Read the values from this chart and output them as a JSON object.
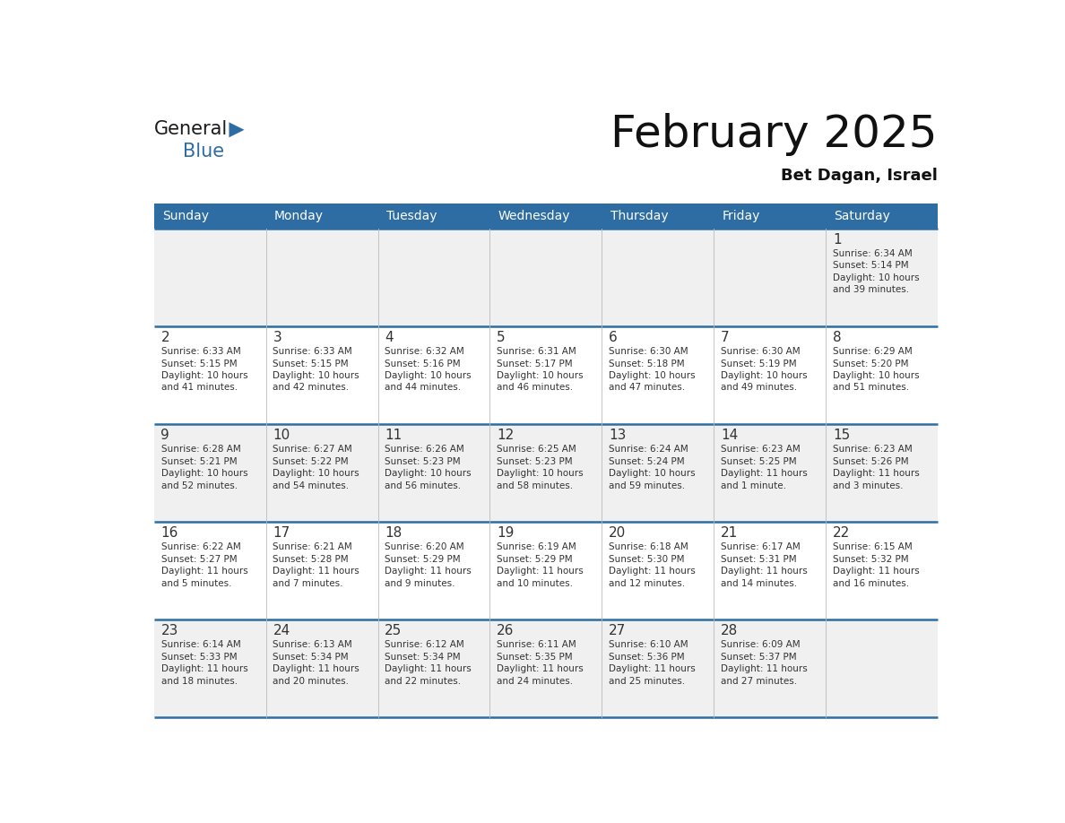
{
  "title": "February 2025",
  "subtitle": "Bet Dagan, Israel",
  "header_color": "#2e6da4",
  "header_text_color": "#ffffff",
  "days_of_week": [
    "Sunday",
    "Monday",
    "Tuesday",
    "Wednesday",
    "Thursday",
    "Friday",
    "Saturday"
  ],
  "background_color": "#ffffff",
  "cell_bg_white": "#ffffff",
  "cell_bg_gray": "#f0f0f0",
  "separator_color": "#2e6da4",
  "day_num_color": "#333333",
  "text_color": "#333333",
  "logo_general_color": "#1a1a1a",
  "logo_blue_color": "#2e6da4",
  "weeks": [
    [
      null,
      null,
      null,
      null,
      null,
      null,
      {
        "day": "1",
        "sunrise": "6:34 AM",
        "sunset": "5:14 PM",
        "daylight_line1": "10 hours",
        "daylight_line2": "and 39 minutes."
      }
    ],
    [
      {
        "day": "2",
        "sunrise": "6:33 AM",
        "sunset": "5:15 PM",
        "daylight_line1": "10 hours",
        "daylight_line2": "and 41 minutes."
      },
      {
        "day": "3",
        "sunrise": "6:33 AM",
        "sunset": "5:15 PM",
        "daylight_line1": "10 hours",
        "daylight_line2": "and 42 minutes."
      },
      {
        "day": "4",
        "sunrise": "6:32 AM",
        "sunset": "5:16 PM",
        "daylight_line1": "10 hours",
        "daylight_line2": "and 44 minutes."
      },
      {
        "day": "5",
        "sunrise": "6:31 AM",
        "sunset": "5:17 PM",
        "daylight_line1": "10 hours",
        "daylight_line2": "and 46 minutes."
      },
      {
        "day": "6",
        "sunrise": "6:30 AM",
        "sunset": "5:18 PM",
        "daylight_line1": "10 hours",
        "daylight_line2": "and 47 minutes."
      },
      {
        "day": "7",
        "sunrise": "6:30 AM",
        "sunset": "5:19 PM",
        "daylight_line1": "10 hours",
        "daylight_line2": "and 49 minutes."
      },
      {
        "day": "8",
        "sunrise": "6:29 AM",
        "sunset": "5:20 PM",
        "daylight_line1": "10 hours",
        "daylight_line2": "and 51 minutes."
      }
    ],
    [
      {
        "day": "9",
        "sunrise": "6:28 AM",
        "sunset": "5:21 PM",
        "daylight_line1": "10 hours",
        "daylight_line2": "and 52 minutes."
      },
      {
        "day": "10",
        "sunrise": "6:27 AM",
        "sunset": "5:22 PM",
        "daylight_line1": "10 hours",
        "daylight_line2": "and 54 minutes."
      },
      {
        "day": "11",
        "sunrise": "6:26 AM",
        "sunset": "5:23 PM",
        "daylight_line1": "10 hours",
        "daylight_line2": "and 56 minutes."
      },
      {
        "day": "12",
        "sunrise": "6:25 AM",
        "sunset": "5:23 PM",
        "daylight_line1": "10 hours",
        "daylight_line2": "and 58 minutes."
      },
      {
        "day": "13",
        "sunrise": "6:24 AM",
        "sunset": "5:24 PM",
        "daylight_line1": "10 hours",
        "daylight_line2": "and 59 minutes."
      },
      {
        "day": "14",
        "sunrise": "6:23 AM",
        "sunset": "5:25 PM",
        "daylight_line1": "11 hours",
        "daylight_line2": "and 1 minute."
      },
      {
        "day": "15",
        "sunrise": "6:23 AM",
        "sunset": "5:26 PM",
        "daylight_line1": "11 hours",
        "daylight_line2": "and 3 minutes."
      }
    ],
    [
      {
        "day": "16",
        "sunrise": "6:22 AM",
        "sunset": "5:27 PM",
        "daylight_line1": "11 hours",
        "daylight_line2": "and 5 minutes."
      },
      {
        "day": "17",
        "sunrise": "6:21 AM",
        "sunset": "5:28 PM",
        "daylight_line1": "11 hours",
        "daylight_line2": "and 7 minutes."
      },
      {
        "day": "18",
        "sunrise": "6:20 AM",
        "sunset": "5:29 PM",
        "daylight_line1": "11 hours",
        "daylight_line2": "and 9 minutes."
      },
      {
        "day": "19",
        "sunrise": "6:19 AM",
        "sunset": "5:29 PM",
        "daylight_line1": "11 hours",
        "daylight_line2": "and 10 minutes."
      },
      {
        "day": "20",
        "sunrise": "6:18 AM",
        "sunset": "5:30 PM",
        "daylight_line1": "11 hours",
        "daylight_line2": "and 12 minutes."
      },
      {
        "day": "21",
        "sunrise": "6:17 AM",
        "sunset": "5:31 PM",
        "daylight_line1": "11 hours",
        "daylight_line2": "and 14 minutes."
      },
      {
        "day": "22",
        "sunrise": "6:15 AM",
        "sunset": "5:32 PM",
        "daylight_line1": "11 hours",
        "daylight_line2": "and 16 minutes."
      }
    ],
    [
      {
        "day": "23",
        "sunrise": "6:14 AM",
        "sunset": "5:33 PM",
        "daylight_line1": "11 hours",
        "daylight_line2": "and 18 minutes."
      },
      {
        "day": "24",
        "sunrise": "6:13 AM",
        "sunset": "5:34 PM",
        "daylight_line1": "11 hours",
        "daylight_line2": "and 20 minutes."
      },
      {
        "day": "25",
        "sunrise": "6:12 AM",
        "sunset": "5:34 PM",
        "daylight_line1": "11 hours",
        "daylight_line2": "and 22 minutes."
      },
      {
        "day": "26",
        "sunrise": "6:11 AM",
        "sunset": "5:35 PM",
        "daylight_line1": "11 hours",
        "daylight_line2": "and 24 minutes."
      },
      {
        "day": "27",
        "sunrise": "6:10 AM",
        "sunset": "5:36 PM",
        "daylight_line1": "11 hours",
        "daylight_line2": "and 25 minutes."
      },
      {
        "day": "28",
        "sunrise": "6:09 AM",
        "sunset": "5:37 PM",
        "daylight_line1": "11 hours",
        "daylight_line2": "and 27 minutes."
      },
      null
    ]
  ]
}
